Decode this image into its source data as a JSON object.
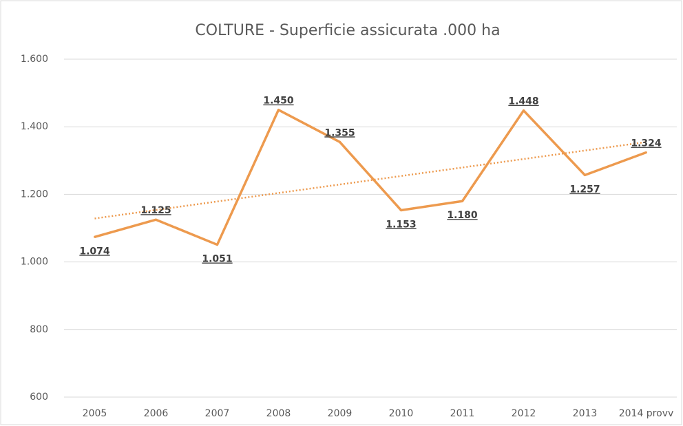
{
  "chart_data": {
    "type": "line",
    "title": "COLTURE - Superficie assicurata .000 ha",
    "categories": [
      "2005",
      "2006",
      "2007",
      "2008",
      "2009",
      "2010",
      "2011",
      "2012",
      "2013",
      "2014 provv"
    ],
    "series": [
      {
        "name": "Superficie assicurata",
        "color": "#ED9A4E",
        "values": [
          1074,
          1125,
          1051,
          1450,
          1355,
          1153,
          1180,
          1448,
          1257,
          1324
        ],
        "value_labels": [
          "1.074",
          "1.125",
          "1.051",
          "1.450",
          "1.355",
          "1.153",
          "1.180",
          "1.448",
          "1.257",
          "1.324"
        ]
      }
    ],
    "ylim": [
      600,
      1600
    ],
    "yticks": [
      600,
      800,
      {
        "value": 1000,
        "label": "1.000"
      },
      {
        "value": 1200,
        "label": "1.200"
      },
      {
        "value": 1400,
        "label": "1.400"
      },
      {
        "value": 1600,
        "label": "1.600"
      }
    ],
    "grid": true,
    "trendline": "linear"
  }
}
